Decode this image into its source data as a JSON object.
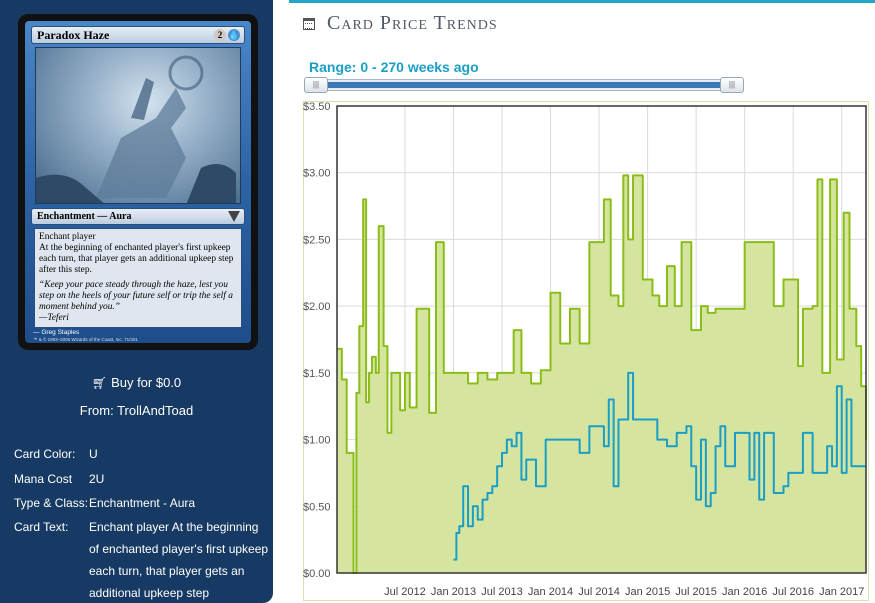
{
  "card": {
    "name": "Paradox Haze",
    "mana_symbols": [
      "2",
      "U"
    ],
    "type_line": "Enchantment — Aura",
    "rules_text": [
      "Enchant player",
      "At the beginning of enchanted player's first upkeep each turn, that player gets an additional upkeep step after this step."
    ],
    "flavor_text": [
      "“Keep your pace steady through the haze, lest you step on the heels of your future self or trip the self a moment behind you.”",
      "—Teferi"
    ],
    "artist": "Greg Staples",
    "copyright": "™ & © 1993–2006 Wizards of the Coast, Inc. 71/301"
  },
  "buy": {
    "label": "Buy for $0.0",
    "from": "From: TrollAndToad"
  },
  "details": [
    {
      "label": "Card Color:",
      "value": "U"
    },
    {
      "label": "Mana Cost",
      "value": "2U"
    },
    {
      "label": "Type & Class:",
      "value": "Enchantment - Aura"
    },
    {
      "label": "Card Text:",
      "value": "Enchant player At the beginning of enchanted player's first upkeep each turn, that player gets an additional upkeep step"
    }
  ],
  "section": {
    "title": "Card Price Trends",
    "icon": "calendar-icon"
  },
  "range": {
    "label": "Range: 0 - 270 weeks ago",
    "min_weeks": 0,
    "max_weeks": 270
  },
  "colors": {
    "panel_bg": "#163a63",
    "accent": "#1fa8c9",
    "green_line": "#8bbd19",
    "green_fill": "#d5e5a0",
    "blue_line": "#1a9ec6"
  },
  "chart_data": {
    "type": "area",
    "ylim": [
      0,
      3.5
    ],
    "y_ticks": [
      "$0.00",
      "$0.50",
      "$1.00",
      "$1.50",
      "$2.00",
      "$2.50",
      "$3.00",
      "$3.50"
    ],
    "y_tick_values": [
      0,
      0.5,
      1,
      1.5,
      2,
      2.5,
      3,
      3.5
    ],
    "x_ticks": [
      "Jul 2012",
      "Jan 2013",
      "Jul 2013",
      "Jan 2014",
      "Jul 2014",
      "Jan 2015",
      "Jul 2015",
      "Jan 2016",
      "Jul 2016",
      "Jan 2017"
    ],
    "x_tick_values": [
      2012.5,
      2013.0,
      2013.5,
      2014.0,
      2014.5,
      2015.0,
      2015.5,
      2016.0,
      2016.5,
      2017.0
    ],
    "xlim": [
      2011.8,
      2017.25
    ],
    "grid": true,
    "series": [
      {
        "color": "#8bbd19",
        "fill": "#d5e5a0",
        "x": [
          2011.8,
          2011.85,
          2011.9,
          2011.97,
          2012.0,
          2012.03,
          2012.07,
          2012.1,
          2012.13,
          2012.16,
          2012.2,
          2012.23,
          2012.28,
          2012.32,
          2012.36,
          2012.4,
          2012.45,
          2012.5,
          2012.55,
          2012.62,
          2012.68,
          2012.75,
          2012.82,
          2012.9,
          2013.0,
          2013.08,
          2013.15,
          2013.25,
          2013.35,
          2013.45,
          2013.55,
          2013.62,
          2013.7,
          2013.8,
          2013.9,
          2014.0,
          2014.1,
          2014.2,
          2014.3,
          2014.4,
          2014.5,
          2014.55,
          2014.62,
          2014.7,
          2014.75,
          2014.8,
          2014.85,
          2014.95,
          2015.05,
          2015.12,
          2015.2,
          2015.28,
          2015.35,
          2015.45,
          2015.55,
          2015.62,
          2015.7,
          2015.8,
          2016.0,
          2016.1,
          2016.2,
          2016.3,
          2016.4,
          2016.48,
          2016.55,
          2016.6,
          2016.7,
          2016.75,
          2016.8,
          2016.88,
          2016.95,
          2017.02,
          2017.08,
          2017.15,
          2017.2,
          2017.25
        ],
        "values": [
          1.68,
          1.45,
          0.9,
          0.0,
          1.35,
          1.85,
          2.8,
          1.28,
          1.5,
          1.62,
          1.5,
          2.6,
          1.7,
          1.05,
          1.5,
          1.5,
          1.22,
          1.5,
          1.24,
          1.98,
          1.98,
          1.2,
          2.48,
          1.5,
          1.5,
          1.5,
          1.42,
          1.5,
          1.45,
          1.5,
          1.5,
          1.82,
          1.5,
          1.42,
          1.52,
          2.1,
          1.72,
          1.98,
          1.72,
          2.48,
          2.48,
          2.8,
          2.08,
          2.0,
          2.98,
          2.5,
          2.98,
          2.2,
          2.08,
          2.0,
          2.3,
          2.0,
          2.48,
          1.82,
          2.0,
          1.95,
          1.98,
          1.98,
          2.48,
          2.48,
          2.48,
          2.0,
          2.2,
          2.2,
          1.55,
          1.98,
          2.0,
          2.95,
          1.5,
          2.95,
          1.6,
          2.7,
          1.98,
          1.7,
          1.4,
          1.0
        ]
      },
      {
        "color": "#1a9ec6",
        "x": [
          2013.0,
          2013.03,
          2013.06,
          2013.1,
          2013.15,
          2013.2,
          2013.25,
          2013.3,
          2013.35,
          2013.4,
          2013.45,
          2013.5,
          2013.55,
          2013.6,
          2013.65,
          2013.7,
          2013.75,
          2013.85,
          2013.95,
          2014.0,
          2014.1,
          2014.2,
          2014.3,
          2014.4,
          2014.5,
          2014.55,
          2014.6,
          2014.65,
          2014.7,
          2014.75,
          2014.8,
          2014.85,
          2014.9,
          2015.0,
          2015.1,
          2015.2,
          2015.3,
          2015.4,
          2015.45,
          2015.5,
          2015.55,
          2015.6,
          2015.65,
          2015.7,
          2015.75,
          2015.8,
          2015.9,
          2016.0,
          2016.05,
          2016.1,
          2016.15,
          2016.2,
          2016.3,
          2016.4,
          2016.45,
          2016.5,
          2016.55,
          2016.6,
          2016.7,
          2016.8,
          2016.85,
          2016.9,
          2016.95,
          2017.0,
          2017.05,
          2017.1,
          2017.15,
          2017.2,
          2017.25
        ],
        "values": [
          0.1,
          0.3,
          0.35,
          0.65,
          0.35,
          0.5,
          0.4,
          0.55,
          0.6,
          0.65,
          0.8,
          0.9,
          1.0,
          0.95,
          1.05,
          0.7,
          0.85,
          0.65,
          1.0,
          1.0,
          1.0,
          1.0,
          0.9,
          1.1,
          1.1,
          0.95,
          1.3,
          0.65,
          1.15,
          1.15,
          1.5,
          1.15,
          1.15,
          1.15,
          1.0,
          0.95,
          1.05,
          1.1,
          0.8,
          0.55,
          1.0,
          0.5,
          0.6,
          0.95,
          1.1,
          0.8,
          1.05,
          1.05,
          0.7,
          1.05,
          0.55,
          1.05,
          0.6,
          0.65,
          0.75,
          0.75,
          0.75,
          1.05,
          0.75,
          0.75,
          0.95,
          0.8,
          1.4,
          0.75,
          1.3,
          0.8,
          0.8,
          0.8,
          0.8
        ]
      }
    ]
  }
}
